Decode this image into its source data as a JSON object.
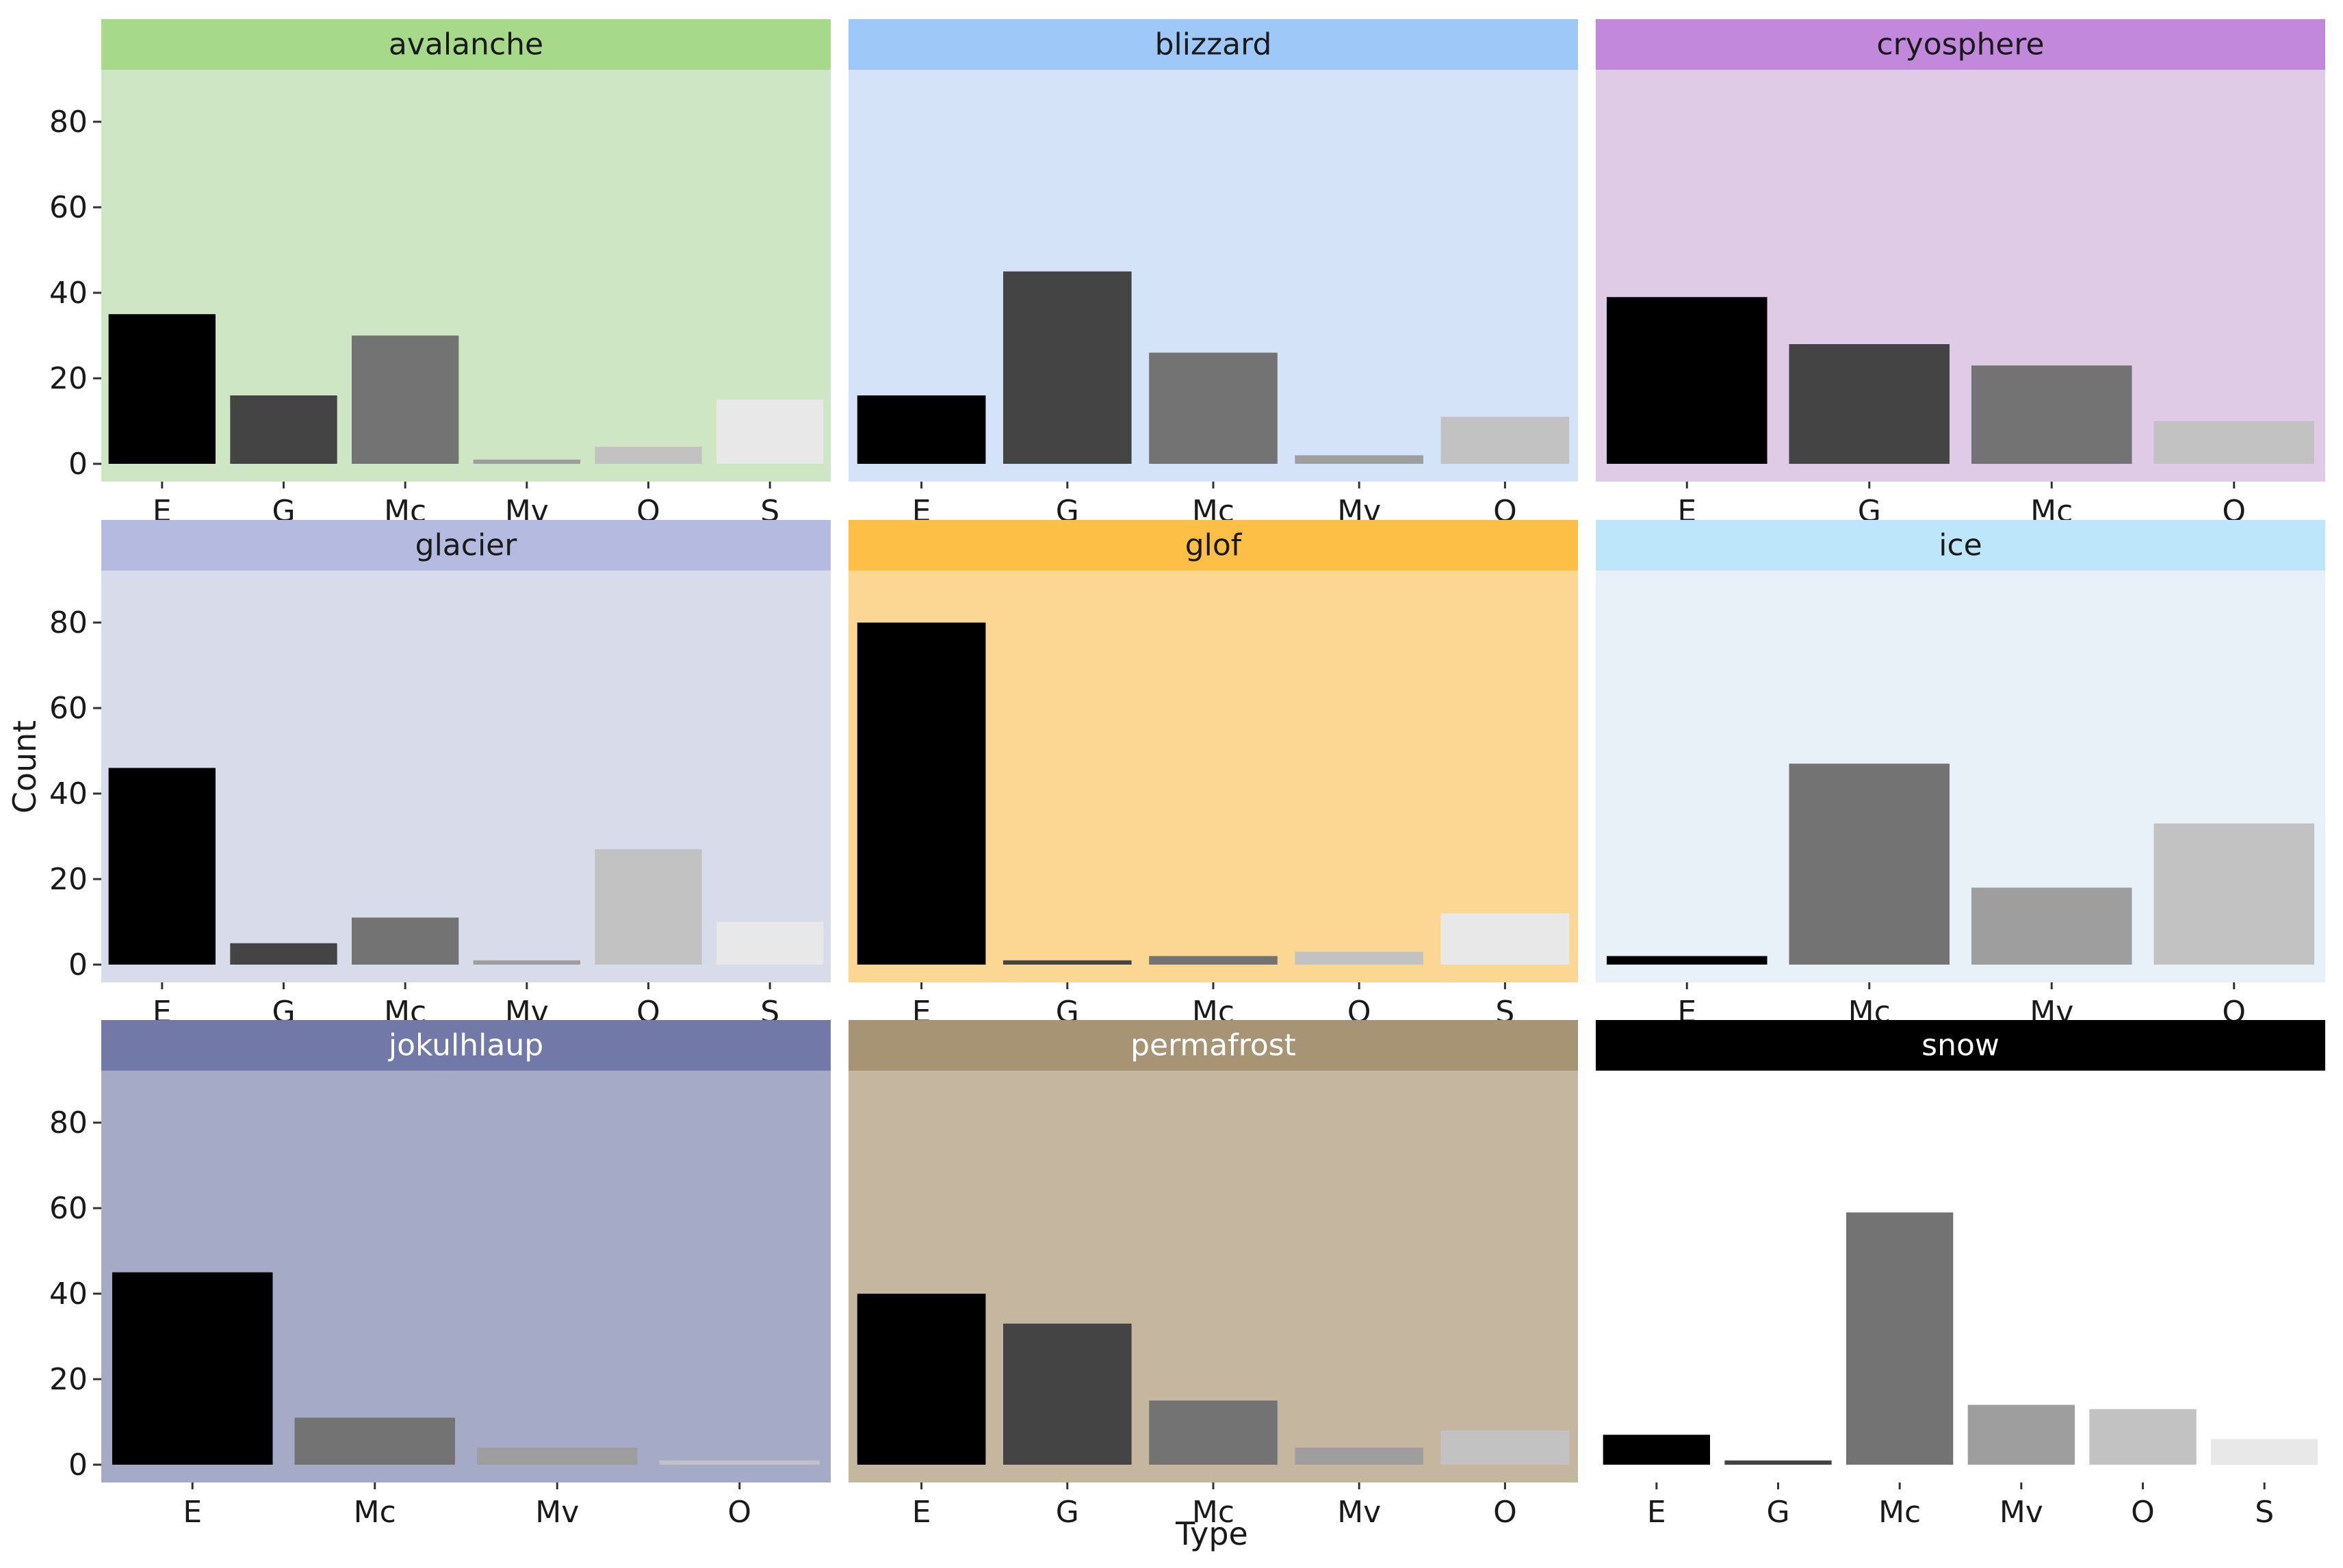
{
  "chart_data": {
    "type": "bar",
    "layout": "facet-grid 3x3",
    "xlabel": "Type",
    "ylabel": "Count",
    "ylim": [
      0,
      88
    ],
    "yticks": [
      0,
      20,
      40,
      60,
      80
    ],
    "fill_colors": {
      "E": "#000000",
      "G": "#444444",
      "Mc": "#737373",
      "Mv": "#9e9e9e",
      "O": "#c2c2c2",
      "S": "#e8e8e8"
    },
    "panels": [
      {
        "title": "avalanche",
        "strip_color": "#a6d98a",
        "bg_color": "#cfe6c4",
        "text_color": "#1a1a1a",
        "categories": [
          "E",
          "G",
          "Mc",
          "Mv",
          "O",
          "S"
        ],
        "values": [
          35,
          16,
          30,
          1,
          4,
          15
        ]
      },
      {
        "title": "blizzard",
        "strip_color": "#9ec8f7",
        "bg_color": "#d4e3f8",
        "text_color": "#1a1a1a",
        "categories": [
          "E",
          "G",
          "Mc",
          "Mv",
          "O"
        ],
        "values": [
          16,
          45,
          26,
          2,
          11
        ]
      },
      {
        "title": "cryosphere",
        "strip_color": "#c188dc",
        "bg_color": "#dfcbe6",
        "text_color": "#1a1a1a",
        "categories": [
          "E",
          "G",
          "Mc",
          "O"
        ],
        "values": [
          39,
          28,
          23,
          10
        ]
      },
      {
        "title": "glacier",
        "strip_color": "#b4bae0",
        "bg_color": "#d8dbe9",
        "text_color": "#1a1a1a",
        "categories": [
          "E",
          "G",
          "Mc",
          "Mv",
          "O",
          "S"
        ],
        "values": [
          46,
          5,
          11,
          1,
          27,
          10
        ]
      },
      {
        "title": "glof",
        "strip_color": "#fdbf45",
        "bg_color": "#fbd793",
        "text_color": "#1a1a1a",
        "categories": [
          "E",
          "G",
          "Mc",
          "O",
          "S"
        ],
        "values": [
          80,
          1,
          2,
          3,
          12
        ]
      },
      {
        "title": "ice",
        "strip_color": "#bde6fa",
        "bg_color": "#e8f1f7",
        "text_color": "#1a1a1a",
        "categories": [
          "E",
          "Mc",
          "Mv",
          "O"
        ],
        "values": [
          2,
          47,
          18,
          33
        ]
      },
      {
        "title": "jokulhlaup",
        "strip_color": "#7278a8",
        "bg_color": "#a5aac7",
        "text_color": "#ffffff",
        "categories": [
          "E",
          "Mc",
          "Mv",
          "O"
        ],
        "values": [
          45,
          11,
          4,
          1
        ]
      },
      {
        "title": "permafrost",
        "strip_color": "#a69474",
        "bg_color": "#c4b69f",
        "text_color": "#ffffff",
        "categories": [
          "E",
          "G",
          "Mc",
          "Mv",
          "O"
        ],
        "values": [
          40,
          33,
          15,
          4,
          8
        ]
      },
      {
        "title": "snow",
        "strip_color": "#000000",
        "bg_color": "#ffffff",
        "text_color": "#ffffff",
        "categories": [
          "E",
          "G",
          "Mc",
          "Mv",
          "O",
          "S"
        ],
        "values": [
          7,
          1,
          59,
          14,
          13,
          6
        ]
      }
    ]
  }
}
